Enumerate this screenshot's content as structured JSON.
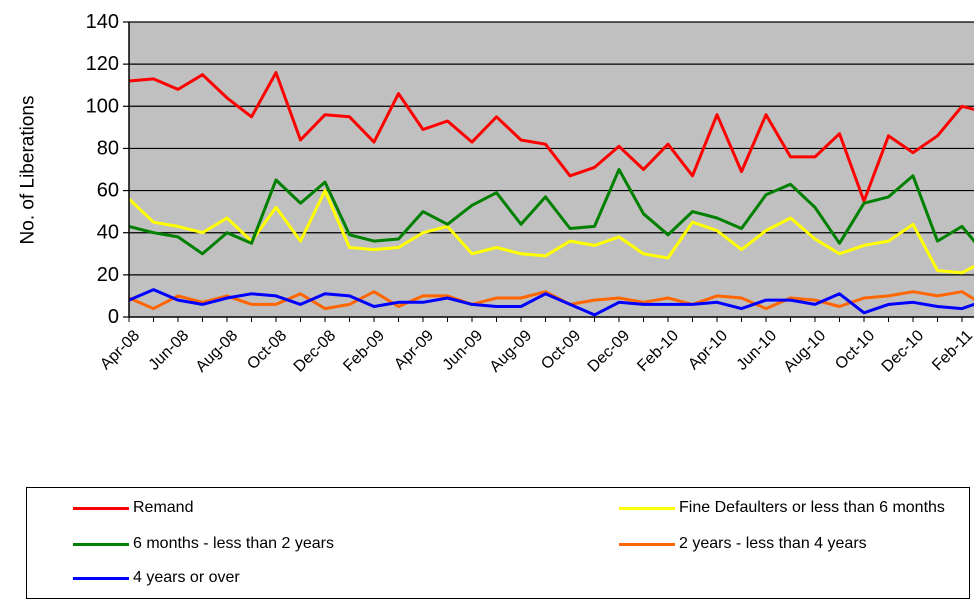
{
  "chart_data": {
    "type": "line",
    "title": "",
    "xlabel": "",
    "ylabel": "No. of Liberations",
    "ylim": [
      0,
      140
    ],
    "yticks": [
      0,
      20,
      40,
      60,
      80,
      100,
      120,
      140
    ],
    "grid": true,
    "legend_position": "bottom",
    "x": [
      "Apr-08",
      "May-08",
      "Jun-08",
      "Jul-08",
      "Aug-08",
      "Sep-08",
      "Oct-08",
      "Nov-08",
      "Dec-08",
      "Jan-09",
      "Feb-09",
      "Mar-09",
      "Apr-09",
      "May-09",
      "Jun-09",
      "Jul-09",
      "Aug-09",
      "Sep-09",
      "Oct-09",
      "Nov-09",
      "Dec-09",
      "Jan-10",
      "Feb-10",
      "Mar-10",
      "Apr-10",
      "May-10",
      "Jun-10",
      "Jul-10",
      "Aug-10",
      "Sep-10",
      "Oct-10",
      "Nov-10",
      "Dec-10",
      "Jan-11",
      "Feb-11",
      "Mar-11"
    ],
    "x_tick_labels": [
      "Apr-08",
      "Jun-08",
      "Aug-08",
      "Oct-08",
      "Dec-08",
      "Feb-09",
      "Apr-09",
      "Jun-09",
      "Aug-09",
      "Oct-09",
      "Dec-09",
      "Feb-10",
      "Apr-10",
      "Jun-10",
      "Aug-10",
      "Oct-10",
      "Dec-10",
      "Feb-11"
    ],
    "series": [
      {
        "name": "Remand",
        "color": "#ff0000",
        "values": [
          112,
          113,
          108,
          115,
          104,
          95,
          116,
          84,
          96,
          95,
          83,
          106,
          89,
          93,
          83,
          95,
          84,
          82,
          67,
          71,
          81,
          70,
          82,
          67,
          96,
          69,
          96,
          76,
          76,
          87,
          55,
          86,
          78,
          86,
          100,
          97
        ]
      },
      {
        "name": "Fine Defaulters or less than  6 months",
        "color": "#ffff00",
        "values": [
          56,
          45,
          43,
          40,
          47,
          36,
          52,
          36,
          60,
          33,
          32,
          33,
          40,
          43,
          30,
          33,
          30,
          29,
          36,
          34,
          38,
          30,
          28,
          45,
          41,
          32,
          41,
          47,
          37,
          30,
          34,
          36,
          44,
          22,
          21,
          27
        ]
      },
      {
        "name": "6 months - less than 2 years",
        "color": "#008000",
        "values": [
          43,
          40,
          38,
          30,
          40,
          35,
          65,
          54,
          64,
          39,
          36,
          37,
          50,
          44,
          53,
          59,
          44,
          57,
          42,
          43,
          70,
          49,
          39,
          50,
          47,
          42,
          58,
          63,
          52,
          35,
          54,
          57,
          67,
          36,
          43,
          29
        ]
      },
      {
        "name": "2 years - less than 4 years",
        "color": "#ff6600",
        "values": [
          9,
          4,
          10,
          7,
          10,
          6,
          6,
          11,
          4,
          6,
          12,
          5,
          10,
          10,
          6,
          9,
          9,
          12,
          6,
          8,
          9,
          7,
          9,
          6,
          10,
          9,
          4,
          9,
          8,
          5,
          9,
          10,
          12,
          10,
          12,
          5
        ]
      },
      {
        "name": "4 years or over",
        "color": "#0000ff",
        "values": [
          8,
          13,
          8,
          6,
          9,
          11,
          10,
          6,
          11,
          10,
          5,
          7,
          7,
          9,
          6,
          5,
          5,
          11,
          6,
          1,
          7,
          6,
          6,
          6,
          7,
          4,
          8,
          8,
          6,
          11,
          2,
          6,
          7,
          5,
          4,
          8
        ]
      }
    ]
  }
}
